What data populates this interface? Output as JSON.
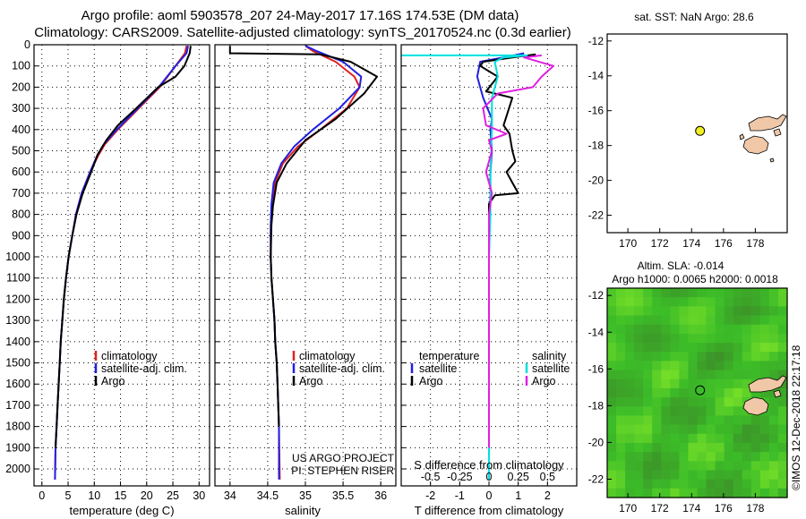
{
  "header": {
    "line1": "Argo profile: aoml 5903578_207 24-May-2017 17.16S 174.53E (DM data)",
    "line2": "Climatology: CARS2009. Satellite-adjusted climatology: synTS_20170524.nc (0.3d earlier)"
  },
  "colors": {
    "climatology": "#e02020",
    "satellite": "#2020e0",
    "argo": "#000000",
    "salinity_satellite": "#00e0e0",
    "salinity_argo": "#e020e0",
    "sst_dot": "#f0f020"
  },
  "chart_data": [
    {
      "id": "temperature",
      "type": "line",
      "xlabel": "temperature (deg C)",
      "ylabel": "",
      "xlim": [
        -1.5,
        32
      ],
      "ylim": [
        2080,
        0
      ],
      "xticks": [
        "0",
        "5",
        "10",
        "15",
        "20",
        "25",
        "30"
      ],
      "xtick_values": [
        0,
        5,
        10,
        15,
        20,
        25,
        30
      ],
      "yticks": [
        "0",
        "100",
        "200",
        "300",
        "400",
        "500",
        "600",
        "700",
        "800",
        "900",
        "1000",
        "1100",
        "1200",
        "1300",
        "1400",
        "1500",
        "1600",
        "1700",
        "1800",
        "1900",
        "2000"
      ],
      "ytick_values": [
        0,
        100,
        200,
        300,
        400,
        500,
        600,
        700,
        800,
        900,
        1000,
        1100,
        1200,
        1300,
        1400,
        1500,
        1600,
        1700,
        1800,
        1900,
        2000
      ],
      "legend": [
        "climatology",
        "satellite-adj. clim.",
        "Argo"
      ],
      "series": [
        {
          "name": "climatology",
          "color_key": "climatology",
          "x": [
            27.6,
            27.3,
            25.5,
            22.5,
            18.5,
            14.5,
            12,
            10.8,
            9.2,
            7.6,
            6.5,
            5.8,
            5.1,
            4.6,
            4.2,
            3.9,
            3.6,
            3.4,
            3.2,
            3.0,
            2.8,
            2.6,
            2.5
          ],
          "y": [
            5,
            40,
            100,
            200,
            300,
            400,
            470,
            520,
            600,
            700,
            800,
            900,
            1000,
            1100,
            1200,
            1300,
            1400,
            1500,
            1600,
            1700,
            1800,
            1900,
            2050
          ]
        },
        {
          "name": "satellite-adj. clim.",
          "color_key": "satellite",
          "x": [
            27.9,
            27.6,
            25.5,
            22.3,
            18.3,
            14.3,
            11.8,
            10.6,
            9.2,
            7.6,
            6.5,
            5.8,
            5.1,
            4.6,
            4.2,
            3.9,
            3.6,
            3.4,
            3.2,
            3.0,
            2.8,
            2.6,
            2.5
          ],
          "y": [
            5,
            40,
            100,
            200,
            300,
            400,
            470,
            520,
            600,
            700,
            800,
            900,
            1000,
            1100,
            1200,
            1300,
            1400,
            1500,
            1600,
            1700,
            1800,
            1900,
            2050
          ]
        },
        {
          "name": "Argo",
          "color_key": "argo",
          "x": [
            28.4,
            28.2,
            27.2,
            25.5,
            22.2,
            18,
            14.5,
            12.3,
            10.6,
            9.4,
            7.8,
            6.6,
            5.8,
            5.1,
            4.6,
            4.2,
            3.9,
            3.6,
            3.4,
            3.2,
            3.0,
            2.8,
            2.6
          ],
          "y": [
            5,
            40,
            100,
            150,
            200,
            300,
            380,
            450,
            520,
            600,
            700,
            800,
            900,
            1000,
            1100,
            1200,
            1300,
            1400,
            1500,
            1600,
            1700,
            1800,
            1900
          ]
        }
      ]
    },
    {
      "id": "salinity",
      "type": "line",
      "xlabel": "salinity",
      "xlim": [
        33.8,
        36.2
      ],
      "ylim": [
        2080,
        0
      ],
      "xticks": [
        "34",
        "34.5",
        "35",
        "35.5",
        "36"
      ],
      "xtick_values": [
        34,
        34.5,
        35,
        35.5,
        36
      ],
      "legend": [
        "climatology",
        "satellite-adj. clim.",
        "Argo"
      ],
      "credits": [
        "US ARGO PROJECT",
        "PI: STEPHEN RISER"
      ],
      "series": [
        {
          "name": "climatology",
          "color_key": "climatology",
          "x": [
            35.0,
            35.1,
            35.4,
            35.65,
            35.72,
            35.55,
            35.2,
            34.9,
            34.7,
            34.6,
            34.56,
            34.54,
            34.54,
            34.55,
            34.57,
            34.59,
            34.6,
            34.62,
            34.63,
            34.64,
            34.65,
            34.66
          ],
          "y": [
            5,
            30,
            80,
            150,
            200,
            300,
            400,
            480,
            560,
            650,
            750,
            850,
            1000,
            1100,
            1200,
            1300,
            1400,
            1500,
            1600,
            1700,
            1800,
            2050
          ]
        },
        {
          "name": "satellite-adj. clim.",
          "color_key": "satellite",
          "x": [
            35.0,
            35.15,
            35.5,
            35.74,
            35.72,
            35.45,
            35.1,
            34.85,
            34.68,
            34.58,
            34.55,
            34.54,
            34.54,
            34.55,
            34.57,
            34.59,
            34.6,
            34.62,
            34.63,
            34.64,
            34.65,
            34.65
          ],
          "y": [
            5,
            30,
            80,
            150,
            200,
            300,
            400,
            480,
            560,
            650,
            750,
            850,
            1000,
            1100,
            1200,
            1300,
            1400,
            1500,
            1600,
            1700,
            1800,
            2050
          ]
        },
        {
          "name": "Argo",
          "color_key": "argo",
          "x": [
            34.0,
            34.0,
            35.2,
            35.6,
            35.95,
            35.78,
            35.4,
            35.0,
            34.75,
            34.62,
            34.57,
            34.55,
            34.54,
            34.55,
            34.57,
            34.59,
            34.6,
            34.62,
            34.63,
            34.64,
            34.65
          ],
          "y": [
            5,
            40,
            45,
            80,
            150,
            230,
            350,
            450,
            560,
            650,
            760,
            850,
            1000,
            1100,
            1200,
            1300,
            1400,
            1500,
            1600,
            1700,
            1800
          ]
        }
      ]
    },
    {
      "id": "difference",
      "type": "line",
      "xlabel": "T difference from climatology",
      "xlabel_top": "S difference from climatology",
      "xlim": [
        -3,
        3
      ],
      "ylim": [
        2080,
        0
      ],
      "xticks": [
        "-2",
        "-1",
        "0",
        "1",
        "2"
      ],
      "xtick_values": [
        -2,
        -1,
        0,
        1,
        2
      ],
      "sticks": [
        "-0.5",
        "-0.25",
        "0",
        "0.25",
        "0.5"
      ],
      "stick_positions": [
        -2,
        -1,
        0,
        1,
        2
      ],
      "legend_left_title": "temperature",
      "legend_right_title": "salinity",
      "legend_left": [
        "satellite",
        "Argo"
      ],
      "legend_right": [
        "satellite",
        "Argo"
      ],
      "series": [
        {
          "name": "T satellite",
          "color_key": "satellite",
          "x": [
            1.2,
            0.5,
            -0.3,
            -0.4,
            -0.2,
            0.1,
            0.05,
            0.1,
            0.05,
            0.05,
            0.02,
            0.0,
            0.0,
            0.0,
            0.0,
            0.0,
            0.0,
            0.0
          ],
          "y": [
            40,
            60,
            80,
            150,
            250,
            350,
            400,
            500,
            600,
            700,
            800,
            1000,
            1200,
            1400,
            1600,
            1800,
            1900,
            2050
          ]
        },
        {
          "name": "T Argo",
          "color_key": "argo",
          "x": [
            1.6,
            0.8,
            -0.2,
            -0.3,
            0.3,
            -0.1,
            0.8,
            0.5,
            0.7,
            0.8,
            0.9,
            0.6,
            0.8,
            1.0,
            0.2,
            0.0,
            0.0,
            0.0,
            0.0,
            0.0
          ],
          "y": [
            45,
            60,
            80,
            100,
            150,
            220,
            250,
            380,
            420,
            500,
            550,
            600,
            650,
            700,
            710,
            750,
            900,
            1200,
            1500,
            1900
          ]
        },
        {
          "name": "S satellite",
          "color_key": "salinity_satellite",
          "x": [
            -3.0,
            1.3,
            0.5,
            0.2,
            0.3,
            0.1,
            0.1,
            0.05,
            0.05,
            0.0,
            0.0,
            0.0,
            0.0,
            0.0,
            0.0
          ],
          "y": [
            50,
            50,
            60,
            80,
            150,
            250,
            400,
            600,
            800,
            1000,
            1200,
            1400,
            1600,
            1800,
            2050
          ]
        },
        {
          "name": "S Argo",
          "color_key": "salinity_argo",
          "x": [
            1.8,
            1.2,
            2.2,
            1.8,
            1.5,
            0.3,
            -0.2,
            -0.1,
            0.6,
            0.0,
            0.1,
            -0.1,
            0.1,
            0.0,
            0.0,
            0.0,
            0.0,
            0.0
          ],
          "y": [
            50,
            60,
            100,
            150,
            200,
            230,
            300,
            380,
            420,
            450,
            500,
            600,
            700,
            800,
            1000,
            1300,
            1600,
            1900
          ]
        }
      ]
    },
    {
      "id": "sst_map",
      "type": "scatter",
      "title": "sat. SST: NaN Argo: 28.6",
      "xlim": [
        168.7,
        180
      ],
      "ylim": [
        -23,
        -11.6
      ],
      "xticks": [
        "170",
        "172",
        "174",
        "176",
        "178"
      ],
      "xtick_values": [
        170,
        172,
        174,
        176,
        178
      ],
      "yticks": [
        "-12",
        "-14",
        "-16",
        "-18",
        "-20",
        "-22"
      ],
      "ytick_values": [
        -12,
        -14,
        -16,
        -18,
        -20,
        -22
      ],
      "point": {
        "lon": 174.53,
        "lat": -17.16
      }
    },
    {
      "id": "sla_map",
      "type": "heatmap",
      "title_line1": "Altim. SLA: -0.014",
      "title_line2": "Argo h1000: 0.0065 h2000: 0.0018",
      "xlim": [
        168.7,
        180
      ],
      "ylim": [
        -23,
        -11.6
      ],
      "xticks": [
        "170",
        "172",
        "174",
        "176",
        "178"
      ],
      "xtick_values": [
        170,
        172,
        174,
        176,
        178
      ],
      "yticks": [
        "-12",
        "-14",
        "-16",
        "-18",
        "-20",
        "-22"
      ],
      "ytick_values": [
        -12,
        -14,
        -16,
        -18,
        -20,
        -22
      ],
      "point": {
        "lon": 174.53,
        "lat": -17.16
      }
    }
  ],
  "watermark": "©IMOS 12-Dec-2018 22:17:18"
}
